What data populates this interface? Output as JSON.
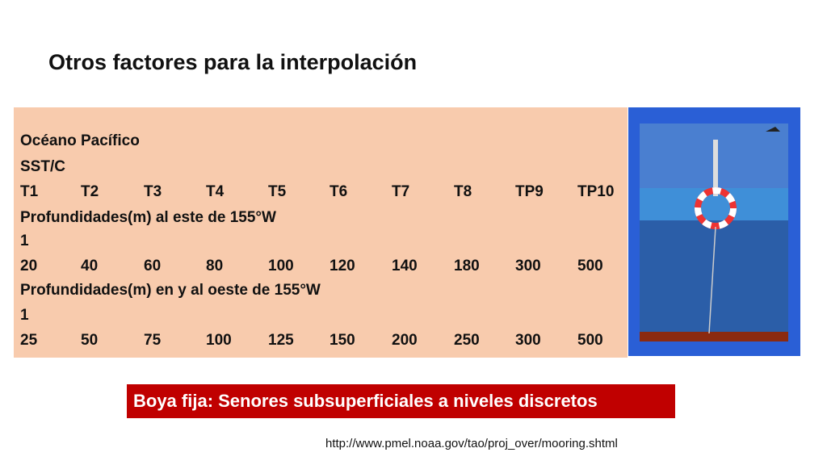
{
  "title": "Otros factores para la interpolación",
  "table": {
    "rows": [
      [
        "Océano Pacífico"
      ],
      [
        "SST/C"
      ],
      [
        "T1",
        "T2",
        "T3",
        "T4",
        "T5",
        "T6",
        "T7",
        "T8",
        "TP9",
        "TP10"
      ],
      [
        "Profundidades(m) al este de 155°W"
      ],
      [
        1
      ],
      [
        20,
        40,
        60,
        80,
        100,
        120,
        140,
        180,
        300,
        500
      ],
      [
        "Profundidades(m) en y al oeste de 155°W"
      ],
      [
        1
      ],
      [
        25,
        50,
        75,
        100,
        125,
        150,
        200,
        250,
        300,
        500
      ]
    ]
  },
  "caption": "Boya fija: Senores subsuperficiales a niveles discretos",
  "source_url": "http://www.pmel.noaa.gov/tao/proj_over/mooring.shtml"
}
